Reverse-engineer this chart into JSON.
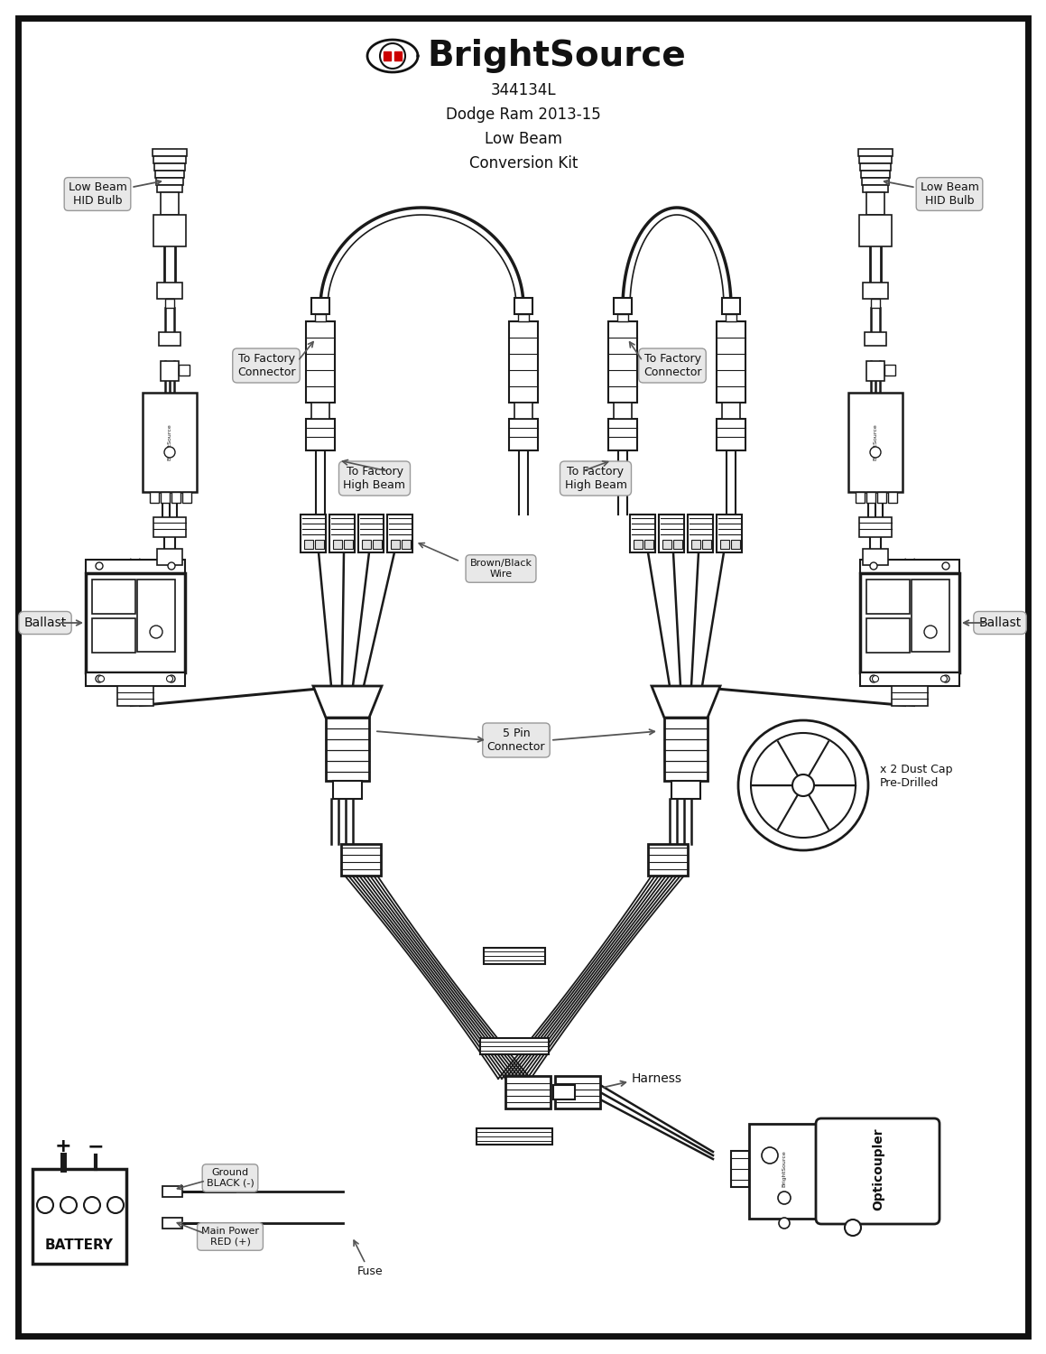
{
  "title_line1": "344134L",
  "title_line2": "Dodge Ram 2013-15",
  "title_line3": "Low Beam",
  "title_line4": "Conversion Kit",
  "bg_color": "#ffffff",
  "line_color": "#1a1a1a",
  "red_color": "#cc0000",
  "labels": {
    "low_beam_hid": "Low Beam\nHID Bulb",
    "ballast_left": "Ballast",
    "ballast_right": "Ballast",
    "to_factory_conn_left": "To Factory\nConnector",
    "to_factory_conn_right": "To Factory\nConnector",
    "to_factory_hb_left": "To Factory\nHigh Beam",
    "to_factory_hb_right": "To Factory\nHigh Beam",
    "five_pin": "5 Pin\nConnector",
    "brown_black": "Brown/Black\nWire",
    "harness": "Harness",
    "dust_cap": "x 2 Dust Cap\nPre-Drilled",
    "battery": "BATTERY",
    "ground": "Ground\nBLACK (-)",
    "main_power": "Main Power\nRED (+)",
    "fuse": "Fuse",
    "opticoupler": "Opticoupler"
  },
  "figsize": [
    11.59,
    15.0
  ],
  "dpi": 100
}
